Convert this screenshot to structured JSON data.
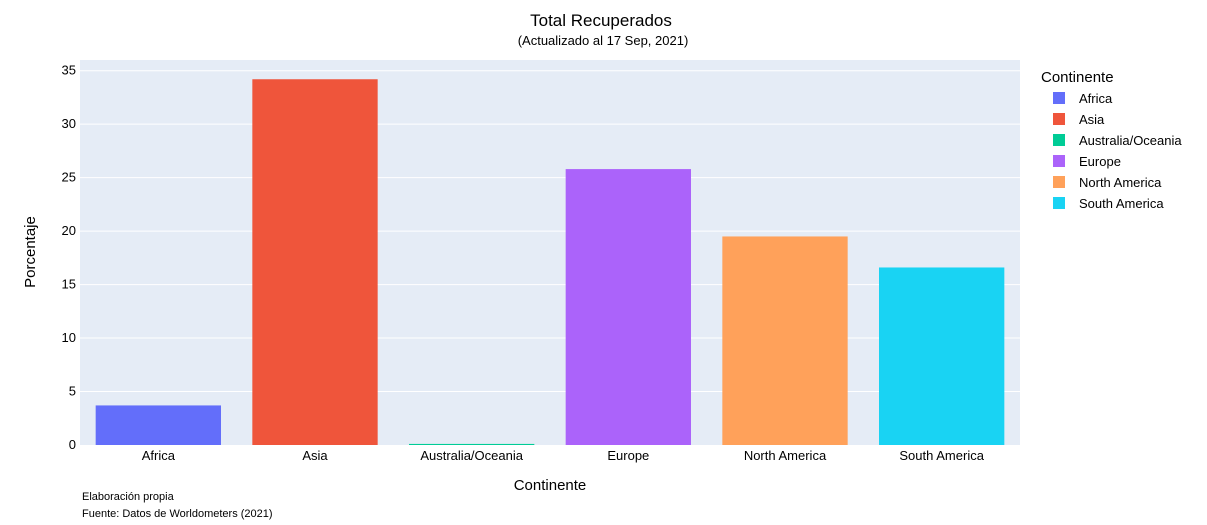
{
  "chart_data": {
    "type": "bar",
    "title": "Total Recuperados",
    "subtitle": "(Actualizado al 17 Sep, 2021)",
    "xlabel": "Continente",
    "ylabel": "Porcentaje",
    "ylim": [
      0,
      36
    ],
    "yticks": [
      0,
      5,
      10,
      15,
      20,
      25,
      30,
      35
    ],
    "grid": true,
    "legend_title": "Continente",
    "legend_position": "right",
    "categories": [
      "Africa",
      "Asia",
      "Australia/Oceania",
      "Europe",
      "North America",
      "South America"
    ],
    "values": [
      3.7,
      34.2,
      0.1,
      25.8,
      19.5,
      16.6
    ],
    "colors": [
      "#636efa",
      "#ef553b",
      "#00cc96",
      "#ab63fa",
      "#ffa15a",
      "#19d3f3"
    ]
  },
  "notes": [
    "Elaboración propia",
    "Fuente: Datos de Worldometers (2021)"
  ]
}
